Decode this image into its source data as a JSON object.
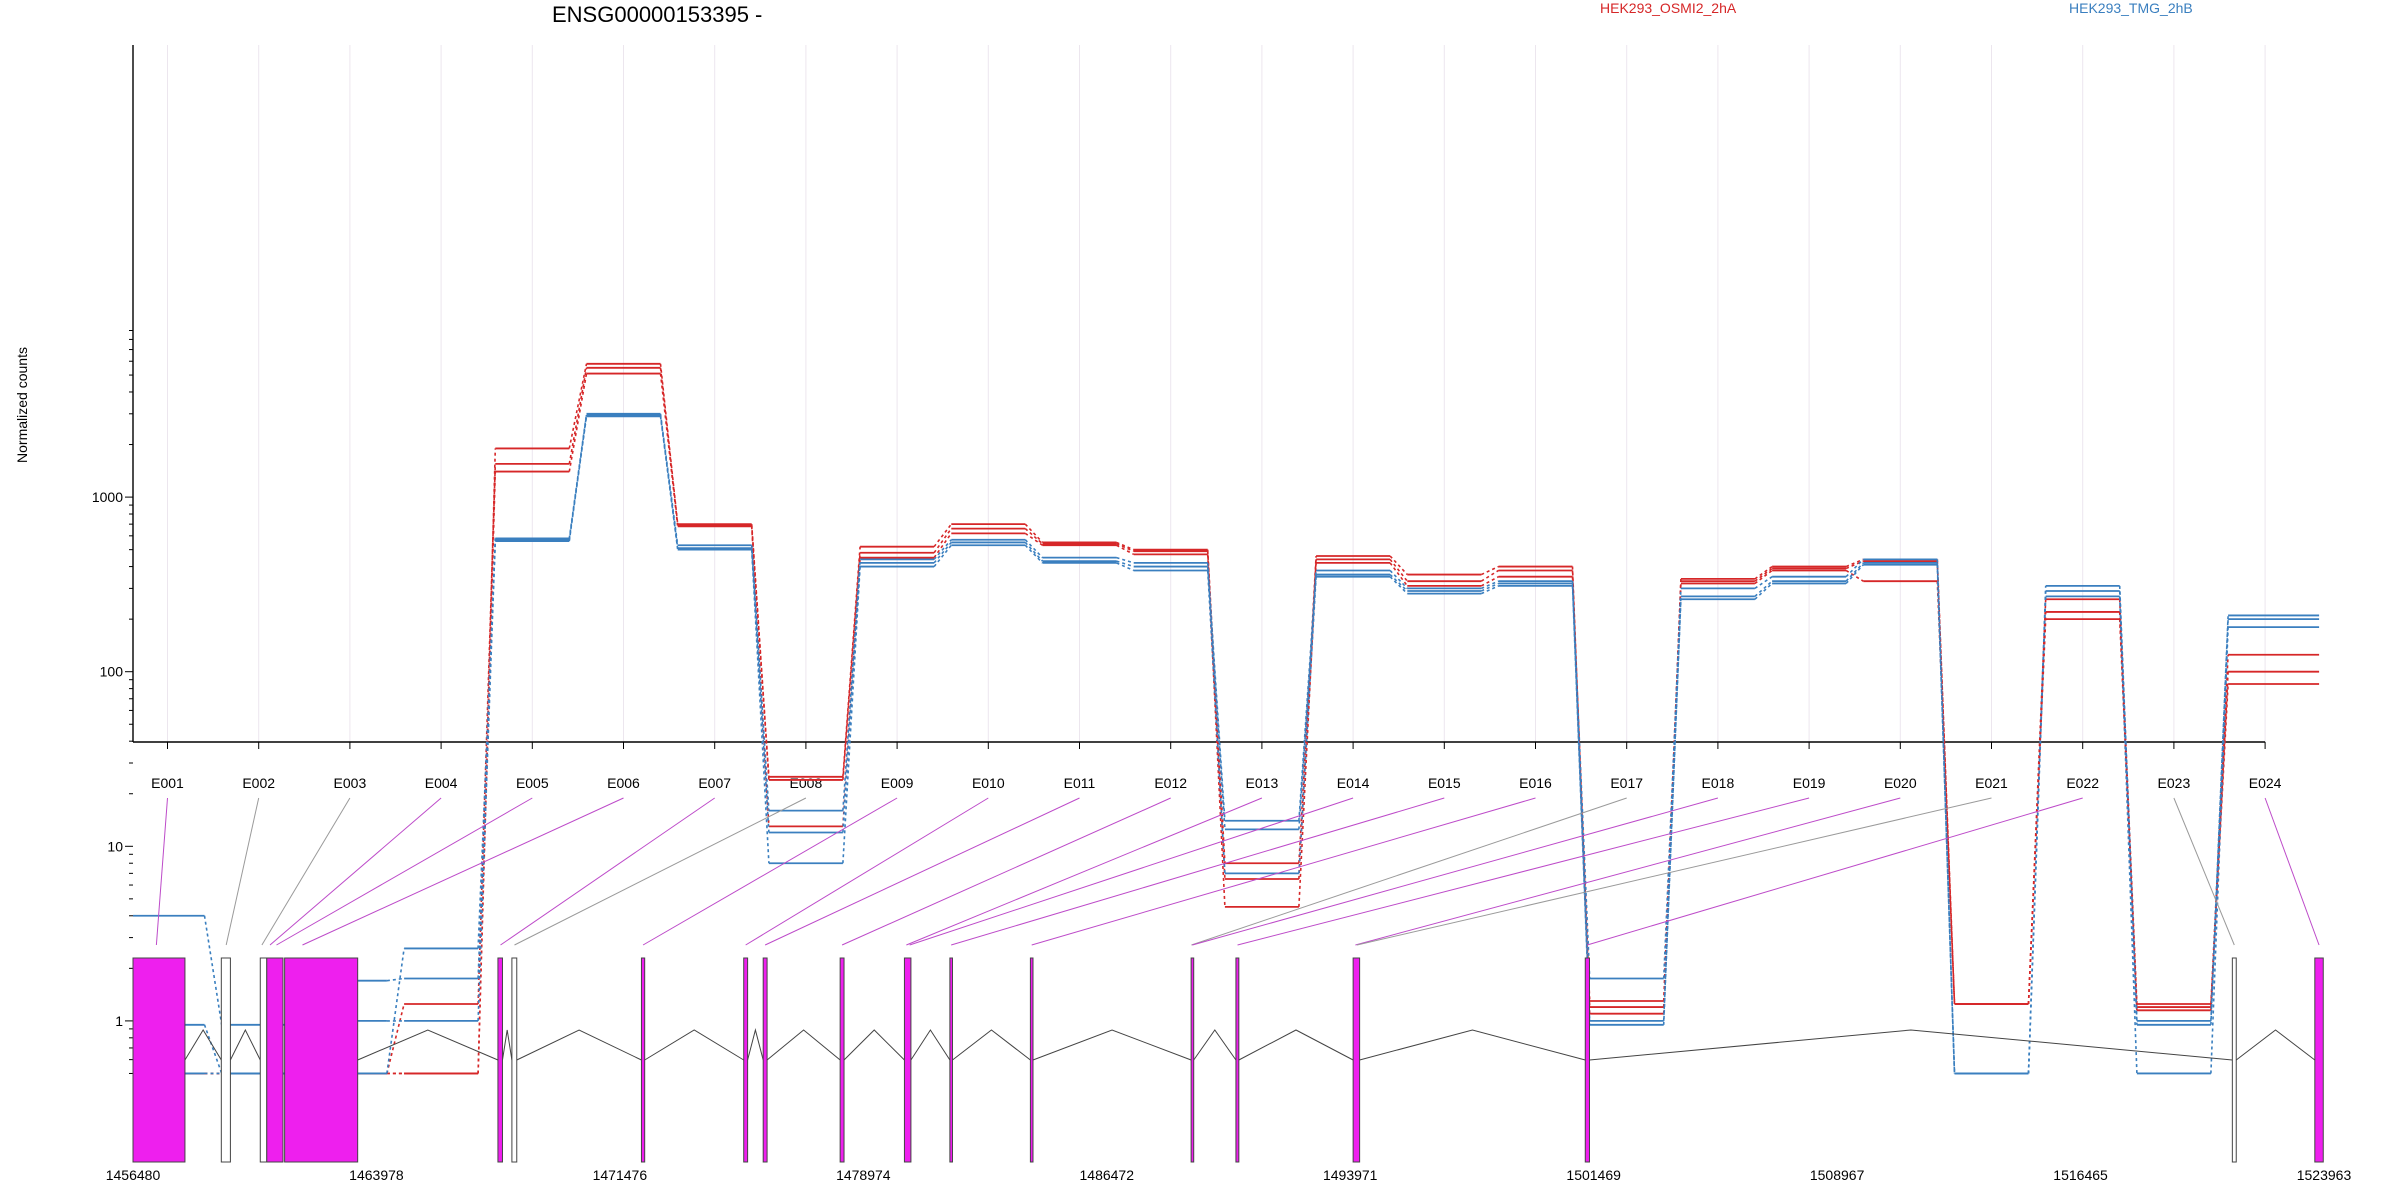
{
  "chart_data": {
    "type": "line",
    "title": "ENSG00000153395 -",
    "ylabel": "Normalized counts",
    "yscale": "log",
    "ylim": [
      0.5,
      9000
    ],
    "yticks": [
      1,
      10,
      100,
      1000
    ],
    "ytick_labels": [
      "1",
      "10",
      "100",
      "1000"
    ],
    "categories": [
      "E001",
      "E002",
      "E003",
      "E004",
      "E005",
      "E006",
      "E007",
      "E008",
      "E009",
      "E010",
      "E011",
      "E012",
      "E013",
      "E014",
      "E015",
      "E016",
      "E017",
      "E018",
      "E019",
      "E020",
      "E021",
      "E022",
      "E023",
      "E024"
    ],
    "legend": [
      {
        "name": "HEK293_OSMI2_2hA",
        "color": "#d62728"
      },
      {
        "name": "HEK293_TMG_2hB",
        "color": "#3a7fbf"
      }
    ],
    "series": [
      {
        "group": "HEK293_OSMI2_2hA",
        "color": "#d62728",
        "values": [
          0.5,
          0.5,
          0.5,
          0.5,
          1900,
          5800,
          700,
          25,
          520,
          700,
          550,
          500,
          8,
          460,
          360,
          400,
          1.1,
          340,
          400,
          440,
          1.25,
          260,
          1.25,
          125
        ]
      },
      {
        "group": "HEK293_OSMI2_2hA",
        "color": "#d62728",
        "values": [
          0.5,
          0.5,
          0.5,
          1.25,
          1550,
          5500,
          690,
          24,
          480,
          660,
          540,
          490,
          6.5,
          440,
          330,
          380,
          1.2,
          330,
          390,
          430,
          1.25,
          220,
          1.15,
          100
        ]
      },
      {
        "group": "HEK293_OSMI2_2hA",
        "color": "#d62728",
        "values": [
          0.5,
          0.5,
          0.5,
          0.5,
          1400,
          5100,
          680,
          13,
          450,
          620,
          530,
          470,
          4.5,
          420,
          310,
          350,
          1.3,
          320,
          380,
          330,
          1.25,
          200,
          1.2,
          85
        ]
      },
      {
        "group": "HEK293_TMG_2hB",
        "color": "#3a7fbf",
        "values": [
          4,
          0.95,
          1,
          1,
          580,
          3000,
          530,
          16,
          440,
          570,
          450,
          420,
          14,
          380,
          300,
          330,
          1.75,
          300,
          350,
          440,
          0.5,
          310,
          1,
          210
        ]
      },
      {
        "group": "HEK293_TMG_2hB",
        "color": "#3a7fbf",
        "values": [
          0.95,
          0.5,
          1.7,
          1.75,
          570,
          2900,
          510,
          12,
          420,
          550,
          430,
          400,
          12.5,
          360,
          290,
          320,
          1,
          270,
          330,
          420,
          0.5,
          290,
          0.95,
          200
        ]
      },
      {
        "group": "HEK293_TMG_2hB",
        "color": "#3a7fbf",
        "values": [
          0.5,
          0.5,
          0.5,
          2.6,
          560,
          2950,
          500,
          8,
          400,
          530,
          420,
          380,
          7,
          350,
          280,
          310,
          0.95,
          260,
          320,
          410,
          0.5,
          270,
          0.5,
          180
        ]
      }
    ],
    "gene_model": {
      "coordinate_ticks": [
        "1456480",
        "1463978",
        "1471476",
        "1478974",
        "1486472",
        "1493971",
        "1501469",
        "1508967",
        "1516465",
        "1523963"
      ],
      "exon_color": "#ee1fee",
      "exons": [
        {
          "start": 1456480,
          "end": 1458080,
          "highlight": true
        },
        {
          "start": 1459200,
          "end": 1459480,
          "highlight": false
        },
        {
          "start": 1460400,
          "end": 1460600,
          "highlight": false
        },
        {
          "start": 1460600,
          "end": 1461100,
          "highlight": true
        },
        {
          "start": 1461150,
          "end": 1463400,
          "highlight": true
        },
        {
          "start": 1467720,
          "end": 1467860,
          "highlight": true
        },
        {
          "start": 1468150,
          "end": 1468300,
          "highlight": false
        },
        {
          "start": 1472140,
          "end": 1472240,
          "highlight": true
        },
        {
          "start": 1475290,
          "end": 1475410,
          "highlight": true
        },
        {
          "start": 1475890,
          "end": 1476010,
          "highlight": true
        },
        {
          "start": 1478260,
          "end": 1478380,
          "highlight": true
        },
        {
          "start": 1480240,
          "end": 1480440,
          "highlight": true
        },
        {
          "start": 1481640,
          "end": 1481720,
          "highlight": true
        },
        {
          "start": 1484120,
          "end": 1484200,
          "highlight": true
        },
        {
          "start": 1489070,
          "end": 1489150,
          "highlight": true
        },
        {
          "start": 1490450,
          "end": 1490540,
          "highlight": true
        },
        {
          "start": 1494060,
          "end": 1494260,
          "highlight": true
        },
        {
          "start": 1501210,
          "end": 1501340,
          "highlight": true
        },
        {
          "start": 1521140,
          "end": 1521260,
          "highlight": false
        },
        {
          "start": 1523680,
          "end": 1523940,
          "highlight": true
        }
      ],
      "connectors": [
        {
          "exon": "E001",
          "at": 1457200,
          "sig": true
        },
        {
          "exon": "E002",
          "at": 1459350,
          "sig": false
        },
        {
          "exon": "E003",
          "at": 1460450,
          "sig": false
        },
        {
          "exon": "E004",
          "at": 1460700,
          "sig": true
        },
        {
          "exon": "E005",
          "at": 1460900,
          "sig": true
        },
        {
          "exon": "E006",
          "at": 1461700,
          "sig": true
        },
        {
          "exon": "E007",
          "at": 1467800,
          "sig": true
        },
        {
          "exon": "E008",
          "at": 1468230,
          "sig": false
        },
        {
          "exon": "E009",
          "at": 1472190,
          "sig": true
        },
        {
          "exon": "E010",
          "at": 1475350,
          "sig": true
        },
        {
          "exon": "E011",
          "at": 1475950,
          "sig": true
        },
        {
          "exon": "E012",
          "at": 1478320,
          "sig": true
        },
        {
          "exon": "E013",
          "at": 1480300,
          "sig": true
        },
        {
          "exon": "E014",
          "at": 1480400,
          "sig": true
        },
        {
          "exon": "E015",
          "at": 1481680,
          "sig": true
        },
        {
          "exon": "E016",
          "at": 1484160,
          "sig": true
        },
        {
          "exon": "E017",
          "at": 1489080,
          "sig": false
        },
        {
          "exon": "E018",
          "at": 1489110,
          "sig": true
        },
        {
          "exon": "E019",
          "at": 1490500,
          "sig": true
        },
        {
          "exon": "E020",
          "at": 1494130,
          "sig": true
        },
        {
          "exon": "E021",
          "at": 1494180,
          "sig": false
        },
        {
          "exon": "E022",
          "at": 1501270,
          "sig": true
        },
        {
          "exon": "E023",
          "at": 1521200,
          "sig": false
        },
        {
          "exon": "E024",
          "at": 1523810,
          "sig": true
        }
      ]
    }
  }
}
